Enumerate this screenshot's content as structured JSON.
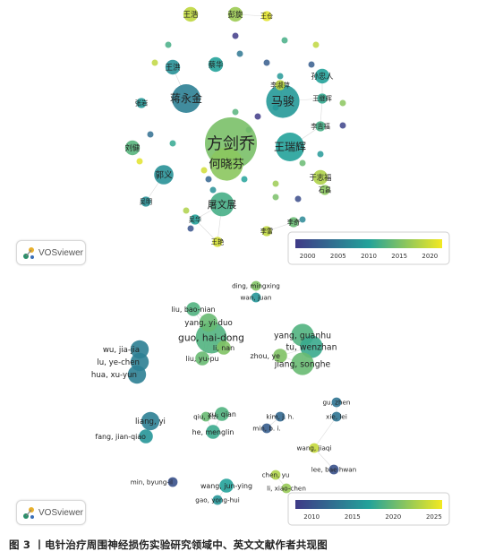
{
  "caption": "图 3  丨电针治疗周围神经损伤实验研究领域中、英文文献作者共现图",
  "badge_label": "VOSviewer",
  "colors": {
    "low": "#3f3a87",
    "mid": "#23a29a",
    "high": "#f3e921"
  },
  "chart_data": [
    {
      "type": "network",
      "language": "zh",
      "colorbar": {
        "ticks": [
          "2000",
          "2005",
          "2010",
          "2015",
          "2020"
        ],
        "range": [
          1998,
          2022
        ]
      },
      "authors": [
        {
          "label": "方剑乔",
          "year": 2015,
          "weight": 10
        },
        {
          "label": "何晓芬",
          "year": 2016,
          "weight": 6
        },
        {
          "label": "马骏",
          "year": 2009,
          "weight": 6
        },
        {
          "label": "王瑞辉",
          "year": 2010,
          "weight": 5
        },
        {
          "label": "屠文展",
          "year": 2012,
          "weight": 4
        },
        {
          "label": "蒋永金",
          "year": 2006,
          "weight": 5
        },
        {
          "label": "郭义",
          "year": 2008,
          "weight": 3
        },
        {
          "label": "刘健",
          "year": 2013,
          "weight": 2
        },
        {
          "label": "蔡华",
          "year": 2010,
          "weight": 2
        },
        {
          "label": "孙忠人",
          "year": 2010,
          "weight": 2
        },
        {
          "label": "王浩",
          "year": 2019,
          "weight": 2
        },
        {
          "label": "彭旋",
          "year": 2017,
          "weight": 2
        },
        {
          "label": "王洪",
          "year": 2008,
          "weight": 2
        },
        {
          "label": "于志福",
          "year": 2018,
          "weight": 2
        },
        {
          "label": "李吉福",
          "year": 2012,
          "weight": 1
        },
        {
          "label": "王继辉",
          "year": 2011,
          "weight": 1
        },
        {
          "label": "李奇",
          "year": 2014,
          "weight": 1
        },
        {
          "label": "石昌",
          "year": 2016,
          "weight": 1
        },
        {
          "label": "王艳",
          "year": 2020,
          "weight": 1
        },
        {
          "label": "李雷",
          "year": 2019,
          "weight": 1
        },
        {
          "label": "王仓",
          "year": 2021,
          "weight": 1
        },
        {
          "label": "李淑萍",
          "year": 2019,
          "weight": 1
        },
        {
          "label": "吴明",
          "year": 2008,
          "weight": 1
        },
        {
          "label": "吴华",
          "year": 2010,
          "weight": 1
        },
        {
          "label": "张岩",
          "year": 2009,
          "weight": 1
        }
      ],
      "visible_labels": [
        "方剑乔",
        "何晓芬",
        "王瑞辉",
        "马骏",
        "屠文展",
        "蒋永金",
        "郭义",
        "孙忠人",
        "于志福",
        "王艳",
        "李雷",
        "王仓",
        "李淑萍",
        "王浩",
        "吴明",
        "吴华",
        "张岩",
        "李吉福",
        "王继辉",
        "李奇",
        "石昌",
        "刘健",
        "蔡华",
        "彭旋",
        "王洪"
      ]
    },
    {
      "type": "network",
      "language": "en",
      "colorbar": {
        "ticks": [
          "2010",
          "2015",
          "2020",
          "2025"
        ],
        "range": [
          2008,
          2026
        ]
      },
      "authors": [
        {
          "label": "guo, hai-dong",
          "year": 2019,
          "weight": 6
        },
        {
          "label": "yang, yi-duo",
          "year": 2020,
          "weight": 3
        },
        {
          "label": "liu, bao-nian",
          "year": 2019,
          "weight": 2
        },
        {
          "label": "li, nan",
          "year": 2021,
          "weight": 2
        },
        {
          "label": "liu, yu-pu",
          "year": 2020,
          "weight": 2
        },
        {
          "label": "ding, mingxing",
          "year": 2021,
          "weight": 1
        },
        {
          "label": "wan, juan",
          "year": 2016,
          "weight": 1
        },
        {
          "label": "yang, guanhu",
          "year": 2019,
          "weight": 4
        },
        {
          "label": "tu, wenzhan",
          "year": 2018,
          "weight": 4
        },
        {
          "label": "jiang, songhe",
          "year": 2020,
          "weight": 4
        },
        {
          "label": "zhou, ye",
          "year": 2021,
          "weight": 2
        },
        {
          "label": "wu, jia-jia",
          "year": 2014,
          "weight": 3
        },
        {
          "label": "lu, ye-chen",
          "year": 2014,
          "weight": 3
        },
        {
          "label": "hua, xu-yun",
          "year": 2014,
          "weight": 3
        },
        {
          "label": "liang, yi",
          "year": 2014,
          "weight": 3
        },
        {
          "label": "fang, jian-qiao",
          "year": 2016,
          "weight": 2
        },
        {
          "label": "xu, qian",
          "year": 2019,
          "weight": 2
        },
        {
          "label": "qiu, xizi",
          "year": 2020,
          "weight": 1
        },
        {
          "label": "he, menglin",
          "year": 2018,
          "weight": 2
        },
        {
          "label": "kim, j. h.",
          "year": 2012,
          "weight": 1
        },
        {
          "label": "min, b. i.",
          "year": 2011,
          "weight": 1
        },
        {
          "label": "gu, zhen",
          "year": 2013,
          "weight": 1
        },
        {
          "label": "xie, lei",
          "year": 2013,
          "weight": 1
        },
        {
          "label": "wang, jiaqi",
          "year": 2024,
          "weight": 1
        },
        {
          "label": "lee, bae hwan",
          "year": 2010,
          "weight": 1
        },
        {
          "label": "chen, yu",
          "year": 2023,
          "weight": 1
        },
        {
          "label": "li, xiao-chen",
          "year": 2022,
          "weight": 1
        },
        {
          "label": "min, byung-il",
          "year": 2010,
          "weight": 1
        },
        {
          "label": "wang, jun-ying",
          "year": 2017,
          "weight": 2
        },
        {
          "label": "gao, yong-hui",
          "year": 2016,
          "weight": 1
        }
      ]
    }
  ]
}
